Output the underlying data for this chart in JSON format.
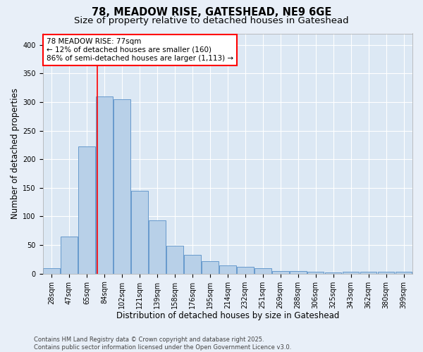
{
  "title_line1": "78, MEADOW RISE, GATESHEAD, NE9 6GE",
  "title_line2": "Size of property relative to detached houses in Gateshead",
  "xlabel": "Distribution of detached houses by size in Gateshead",
  "ylabel": "Number of detached properties",
  "bar_color": "#b8d0e8",
  "bar_edge_color": "#6699cc",
  "categories": [
    "28sqm",
    "47sqm",
    "65sqm",
    "84sqm",
    "102sqm",
    "121sqm",
    "139sqm",
    "158sqm",
    "176sqm",
    "195sqm",
    "214sqm",
    "232sqm",
    "251sqm",
    "269sqm",
    "288sqm",
    "306sqm",
    "325sqm",
    "343sqm",
    "362sqm",
    "380sqm",
    "399sqm"
  ],
  "values": [
    10,
    65,
    222,
    310,
    305,
    145,
    93,
    49,
    33,
    22,
    15,
    12,
    10,
    5,
    5,
    3,
    2,
    3,
    3,
    3,
    3
  ],
  "ylim": [
    0,
    420
  ],
  "yticks": [
    0,
    50,
    100,
    150,
    200,
    250,
    300,
    350,
    400
  ],
  "red_line_x": 2.62,
  "annotation_text": "78 MEADOW RISE: 77sqm\n← 12% of detached houses are smaller (160)\n86% of semi-detached houses are larger (1,113) →",
  "footer_text": "Contains HM Land Registry data © Crown copyright and database right 2025.\nContains public sector information licensed under the Open Government Licence v3.0.",
  "background_color": "#e8eff8",
  "plot_background_color": "#dce8f4",
  "grid_color": "#ffffff",
  "title_fontsize": 10.5,
  "subtitle_fontsize": 9.5,
  "tick_fontsize": 7,
  "label_fontsize": 8.5,
  "footer_fontsize": 6,
  "annotation_fontsize": 7.5
}
